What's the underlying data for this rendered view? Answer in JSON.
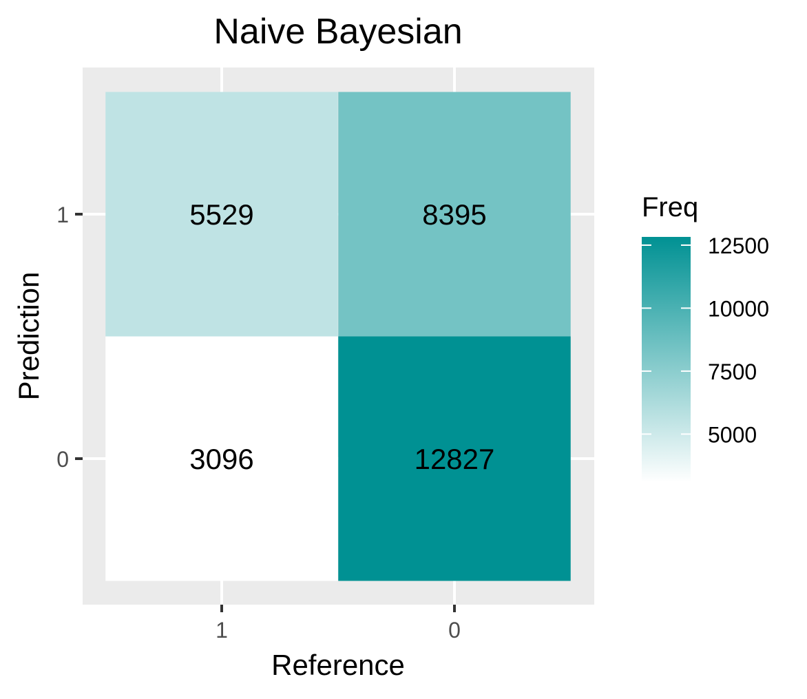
{
  "chart_data": {
    "type": "heatmap",
    "title": "Naive Bayesian",
    "xlabel": "Reference",
    "ylabel": "Prediction",
    "x_categories": [
      "1",
      "0"
    ],
    "y_categories": [
      "1",
      "0"
    ],
    "cells": [
      {
        "reference": "1",
        "prediction": "1",
        "freq": 5529
      },
      {
        "reference": "0",
        "prediction": "1",
        "freq": 8395
      },
      {
        "reference": "1",
        "prediction": "0",
        "freq": 3096
      },
      {
        "reference": "0",
        "prediction": "0",
        "freq": 12827
      }
    ],
    "legend": {
      "title": "Freq",
      "ticks": [
        5000,
        7500,
        10000,
        12500
      ],
      "placement": "right",
      "range": [
        3096,
        12827
      ],
      "low_color": "#ffffff",
      "high_color": "#009193"
    },
    "panel_background": "#ebebeb",
    "grid": true
  }
}
